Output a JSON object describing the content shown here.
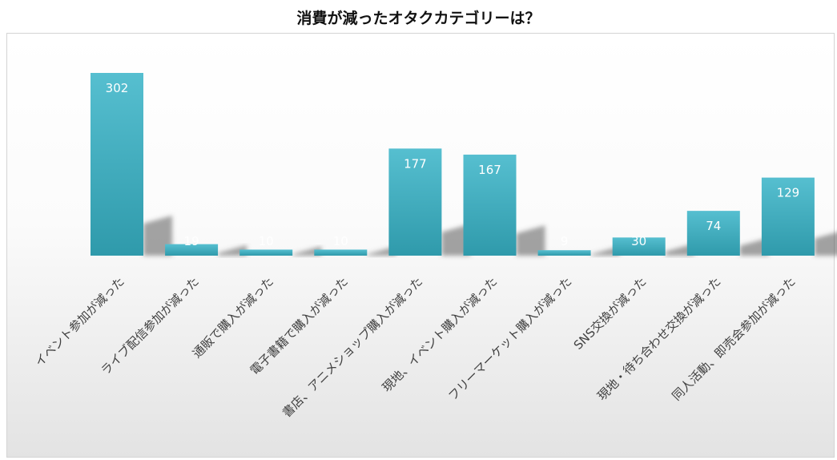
{
  "chart_data": {
    "type": "bar",
    "title": "消費が減ったオタクカテゴリーは？",
    "categories": [
      "イベント参加が減った",
      "ライブ配信参加が減った",
      "通販で購入が減った",
      "電子書籍で購入が減った",
      "書店、アニメショップ購入が減った",
      "現地、イベント購入が減った",
      "フリーマーケット購入が減った",
      "SNS交換が減った",
      "現地・待ち合わせ交換が減った",
      "同人活動、即売会参加が減った"
    ],
    "values": [
      302,
      19,
      10,
      10,
      177,
      167,
      9,
      30,
      74,
      129
    ],
    "ylim": [
      0,
      302
    ],
    "grid": false,
    "legend": "none",
    "colors": {
      "bar_top": "#56bfd0",
      "bar_bottom": "#2f9aab",
      "label": "#ffffff",
      "category_text": "#404040"
    }
  }
}
